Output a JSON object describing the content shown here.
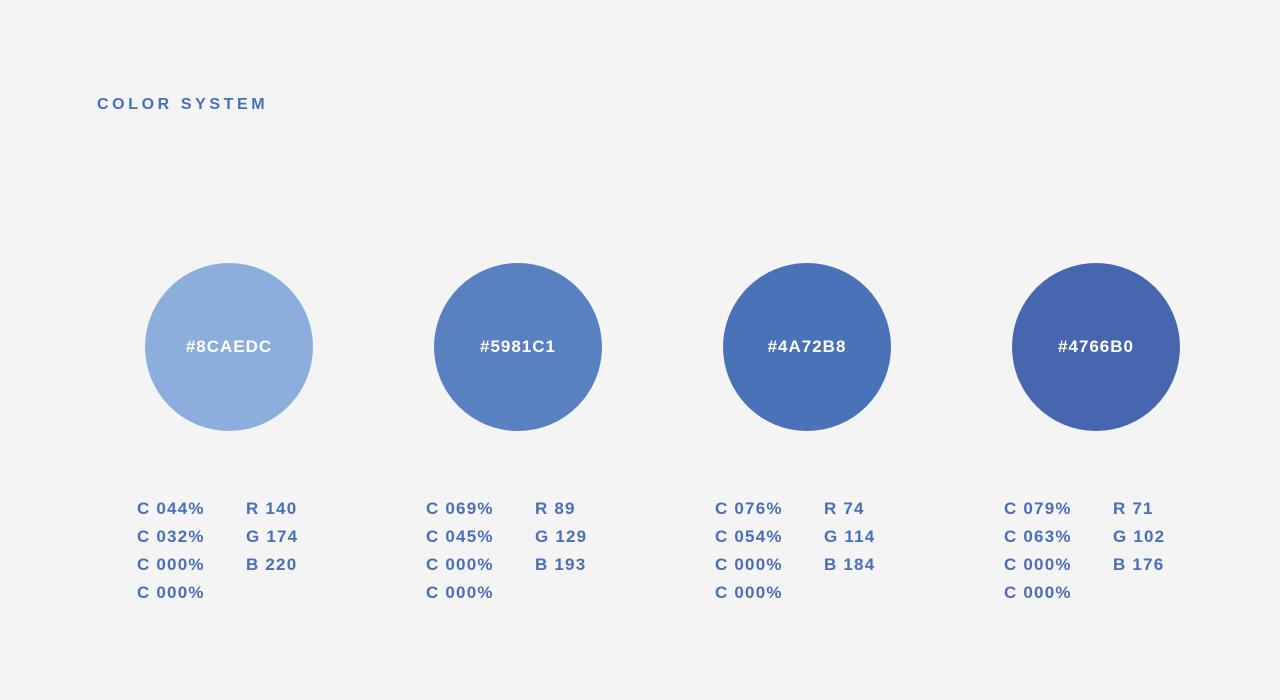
{
  "title": "COLOR SYSTEM",
  "colors": [
    {
      "hex": "#8CAEDC",
      "fill": "#8CAEDC",
      "cmyk": [
        "C 044%",
        "C 032%",
        "C 000%",
        "C 000%"
      ],
      "rgb": [
        "R 140",
        "G 174",
        "B 220"
      ]
    },
    {
      "hex": "#5981C1",
      "fill": "#5981C1",
      "cmyk": [
        "C 069%",
        "C 045%",
        "C 000%",
        "C 000%"
      ],
      "rgb": [
        "R 89",
        "G 129",
        "B 193"
      ]
    },
    {
      "hex": "#4A72B8",
      "fill": "#4A72B8",
      "cmyk": [
        "C 076%",
        "C 054%",
        "C 000%",
        "C 000%"
      ],
      "rgb": [
        "R 74",
        "G 114",
        "B 184"
      ]
    },
    {
      "hex": "#4766B0",
      "fill": "#4766B0",
      "cmyk": [
        "C 079%",
        "C 063%",
        "C 000%",
        "C 000%"
      ],
      "rgb": [
        "R 71",
        "G 102",
        "B 176"
      ]
    }
  ]
}
